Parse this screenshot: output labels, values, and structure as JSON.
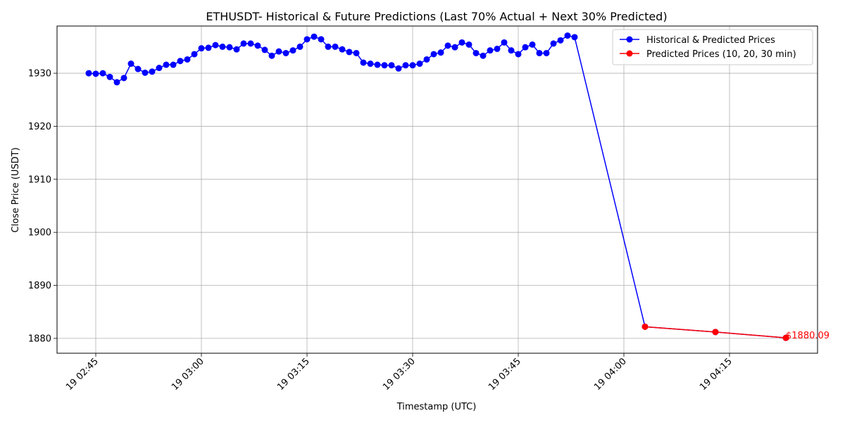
{
  "chart_data": {
    "type": "line",
    "title": "ETHUSDT- Historical & Future Predictions (Last 70% Actual + Next 30% Predicted)",
    "xlabel": "Timestamp (UTC)",
    "ylabel": "Close Price (USDT)",
    "x_ticks": [
      {
        "minute": 45,
        "label": "19 02:45"
      },
      {
        "minute": 60,
        "label": "19 03:00"
      },
      {
        "minute": 75,
        "label": "19 03:15"
      },
      {
        "minute": 90,
        "label": "19 03:30"
      },
      {
        "minute": 105,
        "label": "19 03:45"
      },
      {
        "minute": 120,
        "label": "19 04:00"
      },
      {
        "minute": 135,
        "label": "19 04:15"
      }
    ],
    "y_ticks": [
      1880,
      1890,
      1900,
      1910,
      1920,
      1930
    ],
    "xlim": [
      39.5,
      147.5
    ],
    "ylim": [
      1877.2,
      1938.9
    ],
    "grid": true,
    "legend_position": "top-right",
    "series": [
      {
        "name": "Historical & Predicted Prices",
        "color": "#0000ff",
        "x": [
          44,
          45,
          46,
          47,
          48,
          49,
          50,
          51,
          52,
          53,
          54,
          55,
          56,
          57,
          58,
          59,
          60,
          61,
          62,
          63,
          64,
          65,
          66,
          67,
          68,
          69,
          70,
          71,
          72,
          73,
          74,
          75,
          76,
          77,
          78,
          79,
          80,
          81,
          82,
          83,
          84,
          85,
          86,
          87,
          88,
          89,
          90,
          91,
          92,
          93,
          94,
          95,
          96,
          97,
          98,
          99,
          100,
          101,
          102,
          103,
          104,
          105,
          106,
          107,
          108,
          109,
          110,
          111,
          112,
          113,
          123,
          133,
          143
        ],
        "y": [
          1930.0,
          1929.9,
          1930.0,
          1929.3,
          1928.3,
          1929.1,
          1931.8,
          1930.8,
          1930.1,
          1930.3,
          1931.0,
          1931.6,
          1931.6,
          1932.3,
          1932.6,
          1933.6,
          1934.7,
          1934.8,
          1935.3,
          1935.0,
          1934.9,
          1934.5,
          1935.6,
          1935.6,
          1935.2,
          1934.4,
          1933.3,
          1934.1,
          1933.8,
          1934.3,
          1935.0,
          1936.4,
          1936.9,
          1936.4,
          1935.0,
          1935.0,
          1934.5,
          1934.0,
          1933.8,
          1932.0,
          1931.8,
          1931.6,
          1931.5,
          1931.5,
          1930.9,
          1931.5,
          1931.5,
          1931.8,
          1932.6,
          1933.6,
          1933.9,
          1935.2,
          1934.9,
          1935.8,
          1935.4,
          1933.8,
          1933.3,
          1934.3,
          1934.6,
          1935.8,
          1934.3,
          1933.6,
          1934.9,
          1935.4,
          1933.8,
          1933.8,
          1935.6,
          1936.2,
          1937.1,
          1936.8,
          1882.2,
          1881.2,
          1880.1
        ]
      },
      {
        "name": "Predicted Prices (10, 20, 30 min)",
        "color": "#ff0000",
        "x": [
          123,
          133,
          143
        ],
        "y": [
          1882.2,
          1881.2,
          1880.1
        ]
      }
    ],
    "annotations": [
      {
        "text": "$1880.09",
        "x": 143,
        "y": 1880.1,
        "color": "#ff0000"
      }
    ]
  }
}
